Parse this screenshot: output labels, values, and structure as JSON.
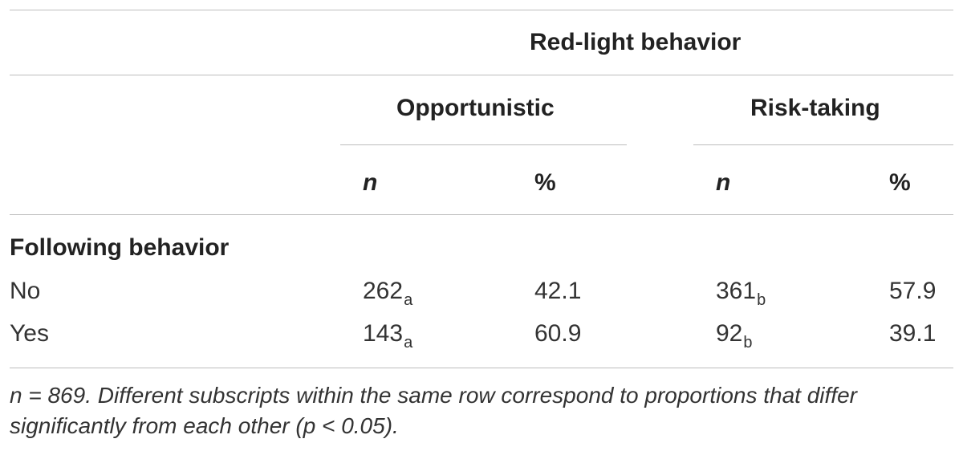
{
  "table": {
    "group_header": "Red-light behavior",
    "column_groups": [
      "Opportunistic",
      "Risk-taking"
    ],
    "subcolumns": [
      "n",
      "%",
      "n",
      "%"
    ],
    "section_label": "Following behavior",
    "rows": [
      {
        "label": "No",
        "opp_n": "262",
        "opp_n_sub": "a",
        "opp_pct": "42.1",
        "risk_n": "361",
        "risk_n_sub": "b",
        "risk_pct": "57.9"
      },
      {
        "label": "Yes",
        "opp_n": "143",
        "opp_n_sub": "a",
        "opp_pct": "60.9",
        "risk_n": "92",
        "risk_n_sub": "b",
        "risk_pct": "39.1"
      }
    ]
  },
  "footnote": "n = 869. Different subscripts within the same row correspond to proportions that differ significantly from each other (p < 0.05)."
}
